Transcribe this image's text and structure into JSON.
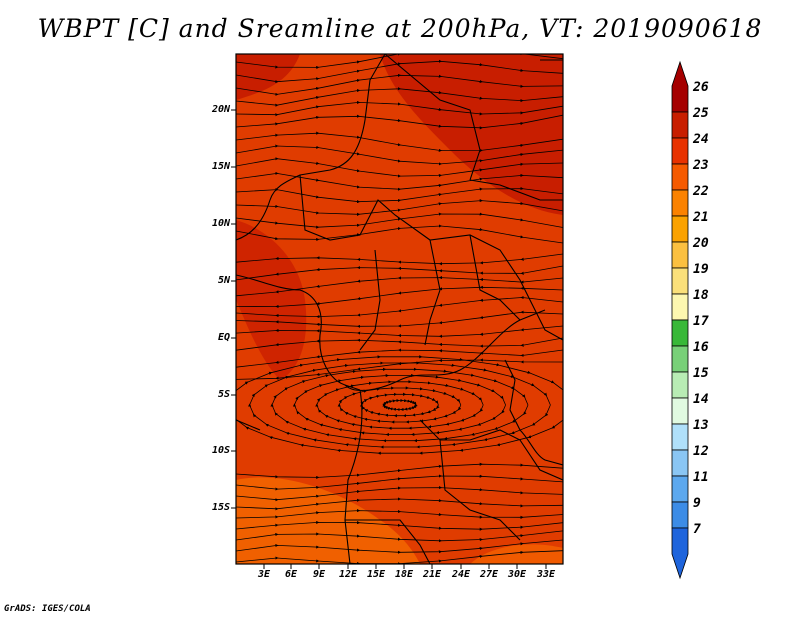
{
  "title": "WBPT [C] and Sreamline at 200hPa, VT: 2019090618",
  "credit": "GrADS: IGES/COLA",
  "lat_labels": [
    "20N",
    "15N",
    "10N",
    "5N",
    "EQ",
    "5S",
    "10S",
    "15S"
  ],
  "lon_labels": [
    "3E",
    "6E",
    "9E",
    "12E",
    "15E",
    "18E",
    "21E",
    "24E",
    "27E",
    "30E",
    "33E"
  ],
  "colorbar": {
    "labels": [
      "26",
      "25",
      "24",
      "23",
      "22",
      "21",
      "20",
      "19",
      "18",
      "17",
      "16",
      "15",
      "14",
      "13",
      "12",
      "11",
      "9",
      "7"
    ],
    "colors": [
      "#a50000",
      "#c81e00",
      "#e83200",
      "#f55a00",
      "#fb8200",
      "#fba200",
      "#fbc040",
      "#fbe07a",
      "#fdf7b0",
      "#38b838",
      "#78d078",
      "#b8ecb4",
      "#e1fae1",
      "#b0e0fa",
      "#8ac6f4",
      "#5ca8ee",
      "#3c8ce6",
      "#1e64dc"
    ]
  },
  "field_colors": {
    "base": "#e03c00",
    "dark": "#c81e00",
    "light": "#f05a00",
    "border": "#000000"
  }
}
